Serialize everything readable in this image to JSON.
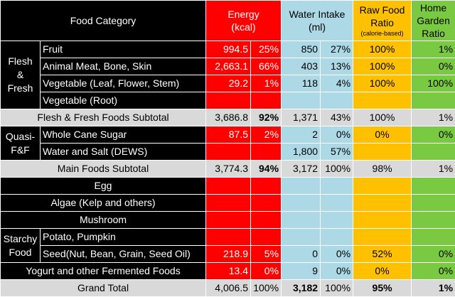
{
  "header": {
    "category": "Food Category",
    "energy_line1": "Energy",
    "energy_line2": "(kcal)",
    "water_line1": "Water Intake",
    "water_line2": "(ml)",
    "raw_line1": "Raw Food",
    "raw_line2": "Ratio",
    "raw_line3": "(calorie-based)",
    "garden_line1": "Home",
    "garden_line2": "Garden",
    "garden_line3": "Ratio"
  },
  "groups": {
    "flesh_fresh": "Flesh & Fresh",
    "quasi": "Quasi-F&F",
    "starchy": "Starchy Food"
  },
  "rows": {
    "fruit": {
      "label": "Fruit",
      "energy": "994.5",
      "energy_pct": "25%",
      "water": "850",
      "water_pct": "27%",
      "raw": "100%",
      "garden": "1%"
    },
    "animal": {
      "label": "Animal Meat, Bone, Skin",
      "energy": "2,663.1",
      "energy_pct": "66%",
      "water": "403",
      "water_pct": "13%",
      "raw": "100%",
      "garden": "0%"
    },
    "veg_leaf": {
      "label": "Vegetable (Leaf, Flower, Stem)",
      "energy": "29.2",
      "energy_pct": "1%",
      "water": "118",
      "water_pct": "4%",
      "raw": "100%",
      "garden": "100%"
    },
    "veg_root": {
      "label": "Vegetable (Root)"
    },
    "ff_subtotal": {
      "label": "Flesh & Fresh Foods Subtotal",
      "energy": "3,686.8",
      "energy_pct": "92%",
      "water": "1,371",
      "water_pct": "43%",
      "raw": "100%",
      "garden": "1%"
    },
    "cane_sugar": {
      "label": "Whole Cane Sugar",
      "energy": "87.5",
      "energy_pct": "2%",
      "water": "2",
      "water_pct": "0%",
      "raw": "0%",
      "garden": "0%"
    },
    "water_salt": {
      "label": "Water and Salt (DEWS)",
      "water": "1,800",
      "water_pct": "57%"
    },
    "main_subtotal": {
      "label": "Main Foods Subtotal",
      "energy": "3,774.3",
      "energy_pct": "94%",
      "water": "3,172",
      "water_pct": "100%",
      "raw": "98%",
      "garden": "1%"
    },
    "egg": {
      "label": "Egg"
    },
    "algae": {
      "label": "Algae (Kelp and others)"
    },
    "mushroom": {
      "label": "Mushroom"
    },
    "potato": {
      "label": "Potato, Pumpkin"
    },
    "seed": {
      "label": "Seed(Nut, Bean, Grain, Seed Oil)",
      "energy": "218.9",
      "energy_pct": "5%",
      "water": "0",
      "water_pct": "0%",
      "raw": "52%",
      "garden": "0%"
    },
    "yogurt": {
      "label": "Yogurt and other Fermented Foods",
      "energy": "13.4",
      "energy_pct": "0%",
      "water": "9",
      "water_pct": "0%",
      "raw": "0%",
      "garden": "0%"
    },
    "grand_total": {
      "label": "Grand Total",
      "energy": "4,006.5",
      "energy_pct": "100%",
      "water": "3,182",
      "water_pct": "100%",
      "raw": "95%",
      "garden": "1%"
    }
  },
  "colors": {
    "energy": "#ff0000",
    "water": "#add8e6",
    "raw": "#ffc000",
    "garden": "#7ac943",
    "label_bg": "#000000",
    "subtotal": "#d9d9d9"
  }
}
